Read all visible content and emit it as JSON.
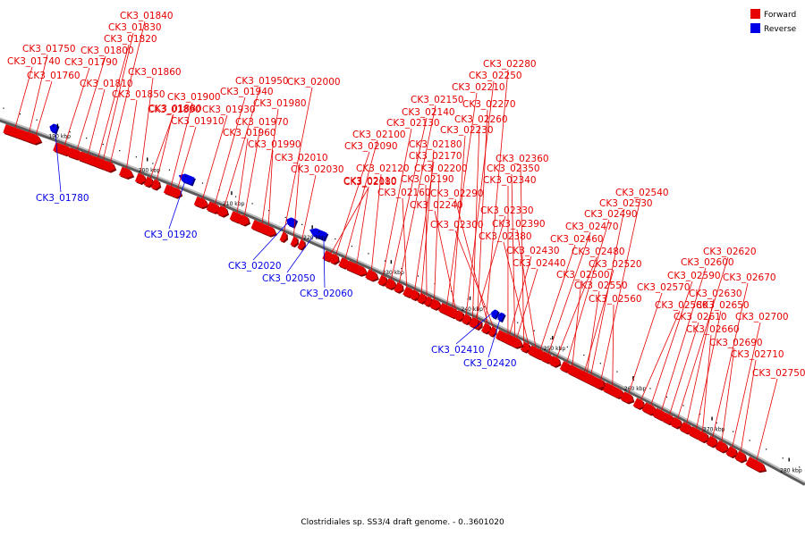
{
  "caption": "Clostridiales sp. SS3/4 draft genome. - 0..3601020",
  "legend": [
    {
      "label": "Forward",
      "color": "#e60000"
    },
    {
      "label": "Reverse",
      "color": "#0000e6"
    }
  ],
  "ticks": [
    "190 kbp",
    "200 kbp",
    "210 kbp",
    "220 kbp",
    "230 kbp",
    "240 kbp",
    "250 kbp",
    "260 kbp",
    "270 kbp",
    "280 kbp"
  ],
  "forward_genes": [
    "CK3_01740",
    "CK3_01750",
    "CK3_01760",
    "CK3_01790",
    "CK3_01800",
    "CK3_01810",
    "CK3_01820",
    "CK3_01830",
    "CK3_01840",
    "CK3_01850",
    "CK3_01860",
    "CK3_01880",
    "CK3_01890",
    "CK3_01900",
    "CK3_01910",
    "CK3_01930",
    "CK3_01940",
    "CK3_01950",
    "CK3_01960",
    "CK3_01970",
    "CK3_01980",
    "CK3_01990",
    "CK3_02000",
    "CK3_02010",
    "CK3_02030",
    "CK3_02080",
    "CK3_02090",
    "CK3_02100",
    "CK3_02110",
    "CK3_02120",
    "CK3_02130",
    "CK3_02140",
    "CK3_02150",
    "CK3_02160",
    "CK3_02170",
    "CK3_02180",
    "CK3_02190",
    "CK3_02200",
    "CK3_02210",
    "CK3_02230",
    "CK3_02240",
    "CK3_02250",
    "CK3_02260",
    "CK3_02270",
    "CK3_02280",
    "CK3_02290",
    "CK3_02300",
    "CK3_02330",
    "CK3_02340",
    "CK3_02350",
    "CK3_02360",
    "CK3_02380",
    "CK3_02390",
    "CK3_02430",
    "CK3_02440",
    "CK3_02460",
    "CK3_02470",
    "CK3_02480",
    "CK3_02490",
    "CK3_02500",
    "CK3_02520",
    "CK3_02530",
    "CK3_02540",
    "CK3_02550",
    "CK3_02560",
    "CK3_02570",
    "CK3_02580",
    "CK3_02590",
    "CK3_02600",
    "CK3_02610",
    "CK3_02620",
    "CK3_02630",
    "CK3_02650",
    "CK3_02660",
    "CK3_02670",
    "CK3_02690",
    "CK3_02700",
    "CK3_02710",
    "CK3_02750"
  ],
  "reverse_genes": [
    "CK3_01780",
    "CK3_01920",
    "CK3_02020",
    "CK3_02050",
    "CK3_02060",
    "CK3_02410",
    "CK3_02420"
  ]
}
